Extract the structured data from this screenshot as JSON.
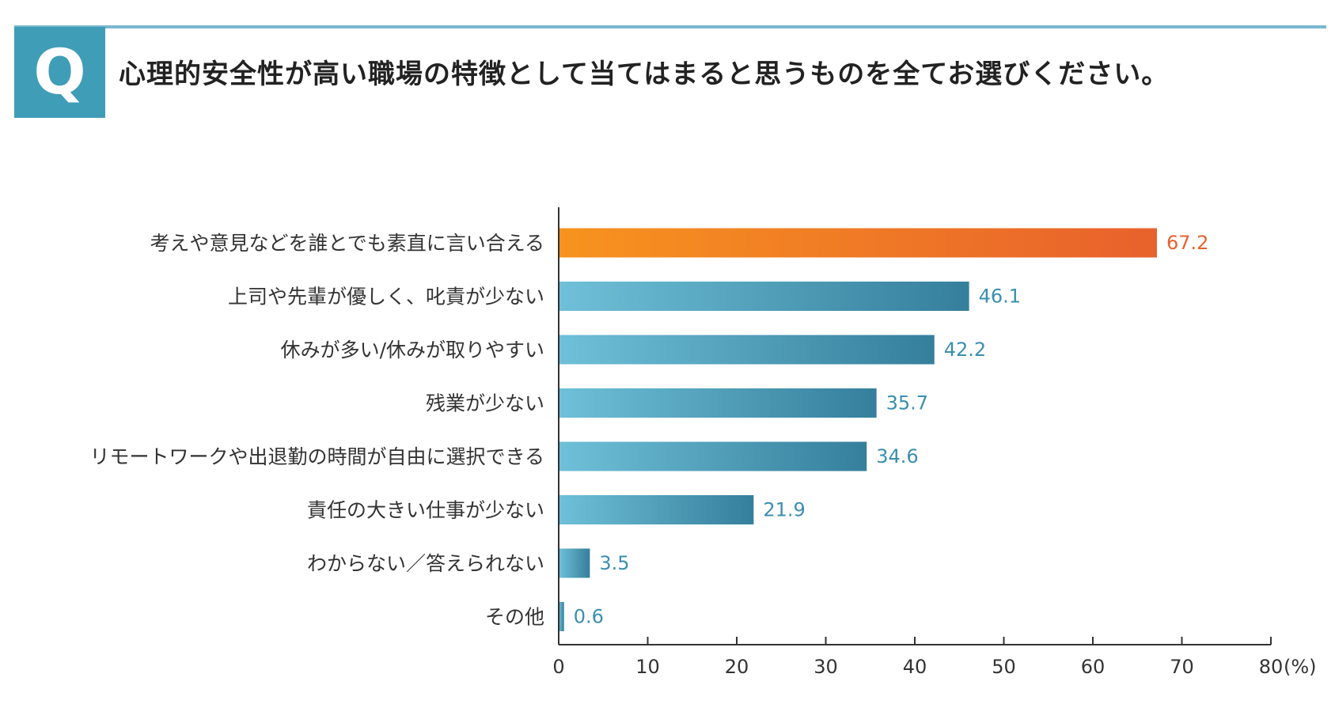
{
  "header": {
    "badge": "Q",
    "question": "心理的安全性が高い職場の特徴として当てはまると思うものを全てお選びください。"
  },
  "colors": {
    "badge": "#3f9db7",
    "rule": "#79b8cf",
    "highlight_bar_start": "#f7931e",
    "highlight_bar_end": "#e8612c",
    "bar_start": "#6fc0d8",
    "bar_end": "#357f9c",
    "highlight_value": "#e8612c",
    "value": "#3a8fb0"
  },
  "chart_data": {
    "type": "bar",
    "orientation": "horizontal",
    "categories": [
      "考えや意見などを誰とでも素直に言い合える",
      "上司や先輩が優しく、叱責が少ない",
      "休みが多い/休みが取りやすい",
      "残業が少ない",
      "リモートワークや出退勤の時間が自由に選択できる",
      "責任の大きい仕事が少ない",
      "わからない／答えられない",
      "その他"
    ],
    "values": [
      67.2,
      46.1,
      42.2,
      35.7,
      34.6,
      21.9,
      3.5,
      0.6
    ],
    "value_labels": [
      "67.2",
      "46.1",
      "42.2",
      "35.7",
      "34.6",
      "21.9",
      "3.5",
      "0.6"
    ],
    "highlight_index": 0,
    "xlim": [
      0,
      80
    ],
    "xticks": [
      "0",
      "10",
      "20",
      "30",
      "40",
      "50",
      "60",
      "70",
      "80"
    ],
    "xunit": "(%)",
    "grid": false
  }
}
